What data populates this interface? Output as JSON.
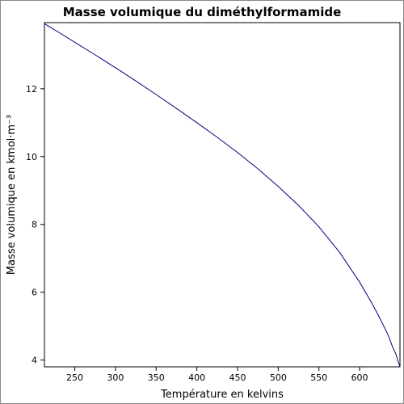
{
  "chart_data": {
    "type": "line",
    "title": "Masse volumique du diméthylformamide",
    "xlabel": "Température en kelvins",
    "ylabel": "Masse volumique en kmol·m⁻³",
    "xlim": [
      212.72,
      649.6
    ],
    "ylim": [
      3.8,
      13.95
    ],
    "xticks": [
      250,
      300,
      350,
      400,
      450,
      500,
      550,
      600
    ],
    "yticks": [
      4,
      6,
      8,
      10,
      12
    ],
    "grid": false,
    "legend": "none",
    "series": [
      {
        "color": "#00007f",
        "x": [
          212.72,
          230,
          250,
          275,
          300,
          325,
          350,
          375,
          400,
          425,
          450,
          475,
          500,
          525,
          550,
          575,
          600,
          615,
          625,
          635,
          640,
          645,
          647,
          648.5,
          649.6
        ],
        "y": [
          13.92,
          13.67,
          13.37,
          13.0,
          12.62,
          12.23,
          11.83,
          11.42,
          11.0,
          10.57,
          10.12,
          9.64,
          9.12,
          8.56,
          7.93,
          7.19,
          6.3,
          5.68,
          5.23,
          4.74,
          4.42,
          4.15,
          3.98,
          3.88,
          3.8
        ]
      }
    ]
  }
}
